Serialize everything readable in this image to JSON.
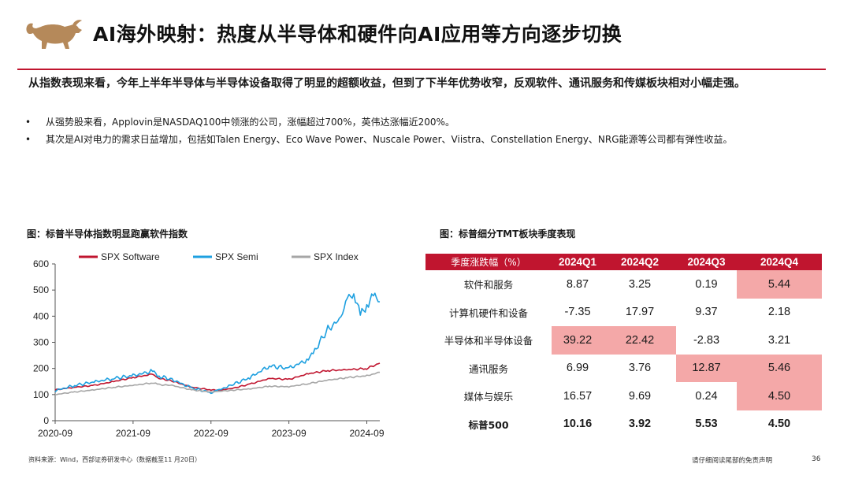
{
  "header": {
    "logo": "bull-logo",
    "title": "AI海外映射：热度从半导体和硬件向AI应用等方向逐步切换",
    "accent": "#c0152f"
  },
  "content": {
    "lead": "从指数表现来看，今年上半年半导体与半导体设备取得了明显的超额收益，但到了下半年优势收窄，反观软件、通讯服务和传媒板块相对小幅走强。",
    "bullets": [
      "从强势股来看，Applovin是NASDAQ100中领涨的公司，涨幅超过700%，英伟达涨幅近200%。",
      "其次是AI对电力的需求日益增加，包括如Talen Energy、Eco Wave Power、Nuscale Power、Viistra、Constellation Energy、NRG能源等公司都有弹性收益。"
    ]
  },
  "left_caption": "图：标普半导体指数明显跑赢软件指数",
  "right_caption": "图：标普细分TMT板块季度表现",
  "chart_data": {
    "type": "line",
    "x_tick_labels": [
      "2020-09",
      "2021-09",
      "2022-09",
      "2023-09",
      "2024-09"
    ],
    "y_tick_labels": [
      "0",
      "100",
      "200",
      "300",
      "400",
      "500",
      "600"
    ],
    "ylim": [
      0,
      600
    ],
    "x_range": [
      "2020-09",
      "2024-11"
    ],
    "legend_position": "top",
    "series": [
      {
        "name": "SPX Software",
        "color": "#c0152f",
        "points": [
          [
            "2020-09",
            118
          ],
          [
            "2020-12",
            128
          ],
          [
            "2021-03",
            135
          ],
          [
            "2021-06",
            150
          ],
          [
            "2021-09",
            165
          ],
          [
            "2021-12",
            178
          ],
          [
            "2022-01",
            162
          ],
          [
            "2022-03",
            152
          ],
          [
            "2022-06",
            128
          ],
          [
            "2022-09",
            118
          ],
          [
            "2022-10",
            116
          ],
          [
            "2022-12",
            122
          ],
          [
            "2023-03",
            140
          ],
          [
            "2023-06",
            162
          ],
          [
            "2023-09",
            158
          ],
          [
            "2023-12",
            180
          ],
          [
            "2024-03",
            192
          ],
          [
            "2024-06",
            195
          ],
          [
            "2024-09",
            200
          ],
          [
            "2024-11",
            220
          ]
        ]
      },
      {
        "name": "SPX Semi",
        "color": "#1ea0e0",
        "points": [
          [
            "2020-09",
            115
          ],
          [
            "2020-12",
            135
          ],
          [
            "2021-03",
            148
          ],
          [
            "2021-06",
            162
          ],
          [
            "2021-09",
            172
          ],
          [
            "2021-12",
            190
          ],
          [
            "2022-01",
            170
          ],
          [
            "2022-03",
            158
          ],
          [
            "2022-06",
            125
          ],
          [
            "2022-09",
            108
          ],
          [
            "2022-10",
            115
          ],
          [
            "2022-12",
            135
          ],
          [
            "2023-03",
            165
          ],
          [
            "2023-06",
            210
          ],
          [
            "2023-09",
            200
          ],
          [
            "2023-12",
            235
          ],
          [
            "2024-01",
            270
          ],
          [
            "2024-03",
            350
          ],
          [
            "2024-05",
            390
          ],
          [
            "2024-06",
            470
          ],
          [
            "2024-07",
            490
          ],
          [
            "2024-08",
            400
          ],
          [
            "2024-09",
            445
          ],
          [
            "2024-10",
            480
          ],
          [
            "2024-11",
            455
          ]
        ]
      },
      {
        "name": "SPX Index",
        "color": "#a6a6a6",
        "points": [
          [
            "2020-09",
            100
          ],
          [
            "2020-12",
            110
          ],
          [
            "2021-03",
            118
          ],
          [
            "2021-06",
            128
          ],
          [
            "2021-09",
            135
          ],
          [
            "2021-12",
            145
          ],
          [
            "2022-01",
            138
          ],
          [
            "2022-03",
            135
          ],
          [
            "2022-06",
            118
          ],
          [
            "2022-09",
            110
          ],
          [
            "2022-10",
            112
          ],
          [
            "2022-12",
            116
          ],
          [
            "2023-03",
            122
          ],
          [
            "2023-06",
            132
          ],
          [
            "2023-09",
            130
          ],
          [
            "2023-12",
            142
          ],
          [
            "2024-03",
            155
          ],
          [
            "2024-06",
            165
          ],
          [
            "2024-09",
            172
          ],
          [
            "2024-11",
            185
          ]
        ]
      }
    ]
  },
  "table": {
    "header_color": "#c0152f",
    "highlight_color": "#f4a8a8",
    "headers": [
      "季度涨跌幅（%）",
      "2024Q1",
      "2024Q2",
      "2024Q3",
      "2024Q4"
    ],
    "rows": [
      {
        "label": "软件和服务",
        "values": [
          "8.87",
          "3.25",
          "0.19",
          "5.44"
        ],
        "highlight": [
          false,
          false,
          false,
          true
        ]
      },
      {
        "label": "计算机硬件和设备",
        "values": [
          "-7.35",
          "17.97",
          "9.37",
          "2.18"
        ],
        "highlight": [
          false,
          false,
          false,
          false
        ]
      },
      {
        "label": "半导体和半导体设备",
        "values": [
          "39.22",
          "22.42",
          "-2.83",
          "3.21"
        ],
        "highlight": [
          true,
          true,
          false,
          false
        ]
      },
      {
        "label": "通讯服务",
        "values": [
          "6.99",
          "3.76",
          "12.87",
          "5.46"
        ],
        "highlight": [
          false,
          false,
          true,
          true
        ]
      },
      {
        "label": "媒体与娱乐",
        "values": [
          "16.57",
          "9.69",
          "0.24",
          "4.50"
        ],
        "highlight": [
          false,
          false,
          false,
          true
        ]
      },
      {
        "label": "标普500",
        "values": [
          "10.16",
          "3.92",
          "5.53",
          "4.50"
        ],
        "highlight": [
          false,
          false,
          false,
          false
        ]
      }
    ]
  },
  "footer": {
    "source": "资料来源：Wind，西部证券研发中心（数据截至11 月20日）",
    "disclaimer": "请仔细阅读尾部的免责声明",
    "page": "36"
  }
}
